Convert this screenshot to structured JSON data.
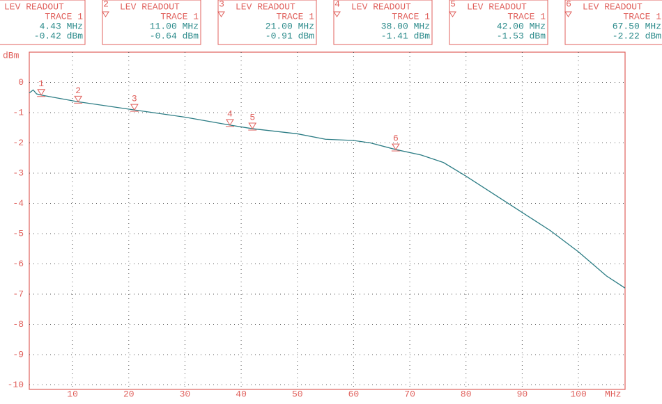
{
  "chart_data": {
    "type": "line",
    "y_unit": "dBm",
    "x_unit": "MHz",
    "xlim": [
      2.3,
      108.3
    ],
    "ylim": [
      -10.15,
      1
    ],
    "xticks": [
      10,
      20,
      30,
      40,
      50,
      60,
      70,
      80,
      90,
      100
    ],
    "yticks": [
      0,
      -1,
      -2,
      -3,
      -4,
      -5,
      -6,
      -7,
      -8,
      -9,
      -10
    ],
    "grid": true,
    "frame_color": "#e0605c",
    "value_color": "#2a8a8a",
    "series": [
      {
        "color": "#2b7c84",
        "x": [
          2.3,
          3,
          3.6,
          4.43,
          11,
          21,
          30,
          38,
          42,
          50,
          55,
          60,
          63,
          67.5,
          72,
          76,
          80,
          85,
          90,
          95,
          100,
          105,
          108.3
        ],
        "values": [
          -0.35,
          -0.25,
          -0.38,
          -0.42,
          -0.64,
          -0.91,
          -1.15,
          -1.41,
          -1.53,
          -1.7,
          -1.88,
          -1.92,
          -2.0,
          -2.22,
          -2.4,
          -2.65,
          -3.1,
          -3.7,
          -4.3,
          -4.9,
          -5.6,
          -6.4,
          -6.8
        ]
      }
    ],
    "markers": [
      {
        "label": "1",
        "title": "LEV READOUT",
        "trace": "TRACE 1",
        "freq": 4.43,
        "freq_label": "4.43 MHz",
        "level": -0.42,
        "level_label": "-0.42 dBm"
      },
      {
        "label": "2",
        "title": "LEV READOUT",
        "trace": "TRACE 1",
        "freq": 11,
        "freq_label": "11.00 MHz",
        "level": -0.64,
        "level_label": "-0.64 dBm"
      },
      {
        "label": "3",
        "title": "LEV READOUT",
        "trace": "TRACE 1",
        "freq": 21,
        "freq_label": "21.00 MHz",
        "level": -0.91,
        "level_label": "-0.91 dBm"
      },
      {
        "label": "4",
        "title": "LEV READOUT",
        "trace": "TRACE 1",
        "freq": 38,
        "freq_label": "38.00 MHz",
        "level": -1.41,
        "level_label": "-1.41 dBm"
      },
      {
        "label": "5",
        "title": "LEV READOUT",
        "trace": "TRACE 1",
        "freq": 42,
        "freq_label": "42.00 MHz",
        "level": -1.53,
        "level_label": "-1.53 dBm"
      },
      {
        "label": "6",
        "title": "LEV READOUT",
        "trace": "TRACE 1",
        "freq": 67.5,
        "freq_label": "67.50 MHz",
        "level": -2.22,
        "level_label": "-2.22 dBm"
      }
    ]
  }
}
